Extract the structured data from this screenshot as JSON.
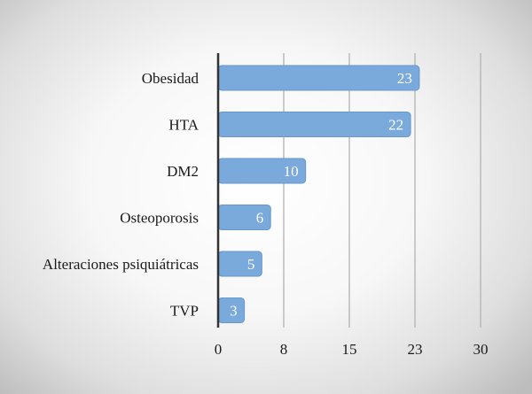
{
  "chart_data": {
    "type": "bar",
    "orientation": "horizontal",
    "title": "",
    "xlabel": "",
    "ylabel": "",
    "categories": [
      "Obesidad",
      "HTA",
      "DM2",
      "Osteoporosis",
      "Alteraciones psiquiátricas",
      "TVP"
    ],
    "values": [
      23,
      22,
      10,
      6,
      5,
      3
    ],
    "data_labels": [
      "23",
      "22",
      "10",
      "6",
      "5",
      "3"
    ],
    "xlim": [
      0,
      30
    ],
    "x_ticks": [
      0,
      7.5,
      15,
      22.5,
      30
    ],
    "x_tick_labels": [
      "0",
      "8",
      "15",
      "23",
      "30"
    ],
    "grid": "vertical",
    "colors": {
      "bar_fill": "#7aa9dc",
      "bar_stroke": "#6897cc",
      "gridline": "#b3b3b3",
      "axis": "#333333"
    }
  }
}
